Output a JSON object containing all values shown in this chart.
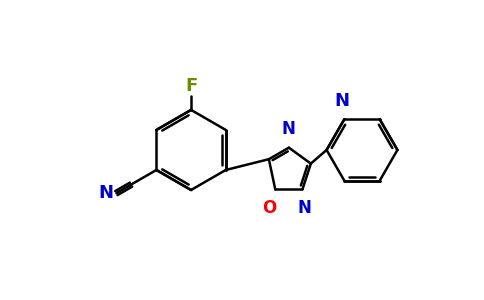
{
  "background_color": "#ffffff",
  "bond_color": "#000000",
  "bond_width": 1.8,
  "atom_colors": {
    "N": "#0000cc",
    "O": "#ff0000",
    "F": "#6b8e00",
    "CN_N": "#0000cc"
  },
  "font_size": 13
}
